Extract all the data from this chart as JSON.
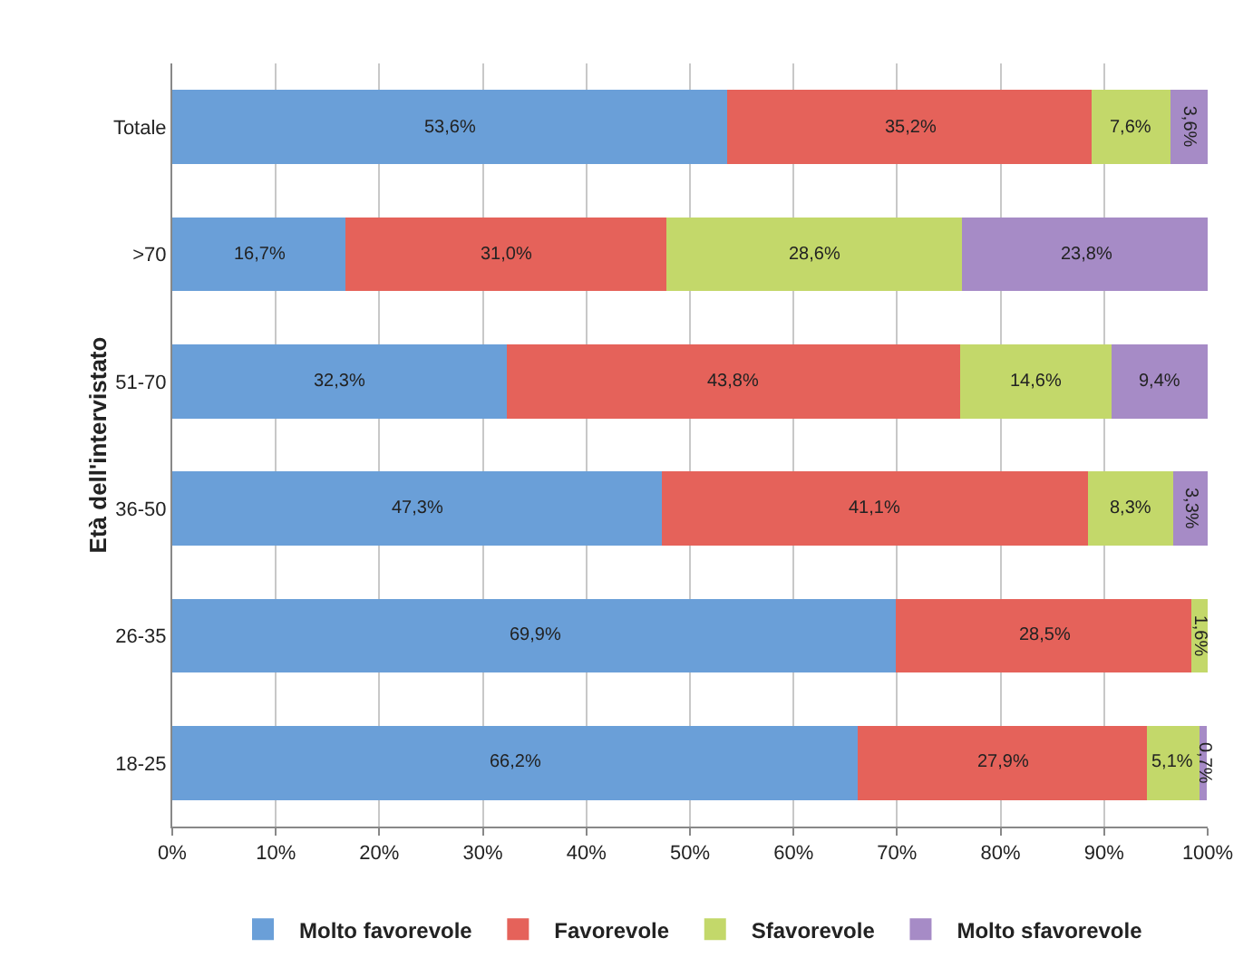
{
  "chart_data": {
    "type": "bar",
    "orientation": "horizontal",
    "stacked": true,
    "ylabel": "Età dell'intervistato",
    "categories": [
      "Totale",
      ">70",
      "51-70",
      "36-50",
      "26-35",
      "18-25"
    ],
    "series": [
      {
        "name": "Molto favorevole",
        "color": "#6a9fd8",
        "values": [
          53.6,
          16.7,
          32.3,
          47.3,
          69.9,
          66.2
        ],
        "value_labels": [
          "53,6%",
          "16,7%",
          "32,3%",
          "47,3%",
          "69,9%",
          "66,2%"
        ]
      },
      {
        "name": "Favorevole",
        "color": "#e5625a",
        "values": [
          35.2,
          31.0,
          43.8,
          41.1,
          28.5,
          27.9
        ],
        "value_labels": [
          "35,2%",
          "31,0%",
          "43,8%",
          "41,1%",
          "28,5%",
          "27,9%"
        ]
      },
      {
        "name": "Sfavorevole",
        "color": "#c3d86a",
        "values": [
          7.6,
          28.6,
          14.6,
          8.3,
          1.6,
          5.1
        ],
        "value_labels": [
          "7,6%",
          "28,6%",
          "14,6%",
          "8,3%",
          "1,6%",
          "5,1%"
        ]
      },
      {
        "name": "Molto sfavorevole",
        "color": "#a68bc6",
        "values": [
          3.6,
          23.8,
          9.4,
          3.3,
          null,
          0.7
        ],
        "value_labels": [
          "3,6%",
          "23,8%",
          "9,4%",
          "3,3%",
          null,
          "0,7%"
        ]
      }
    ],
    "xlim": [
      0,
      100
    ],
    "xticks": [
      {
        "value": 0,
        "label": "0%"
      },
      {
        "value": 10,
        "label": "10%"
      },
      {
        "value": 20,
        "label": "20%"
      },
      {
        "value": 30,
        "label": "30%"
      },
      {
        "value": 40,
        "label": "40%"
      },
      {
        "value": 50,
        "label": "50%"
      },
      {
        "value": 60,
        "label": "60%"
      },
      {
        "value": 70,
        "label": "70%"
      },
      {
        "value": 80,
        "label": "80%"
      },
      {
        "value": 90,
        "label": "90%"
      },
      {
        "value": 100,
        "label": "100%"
      }
    ],
    "grid": "x",
    "legend": "bottom"
  }
}
